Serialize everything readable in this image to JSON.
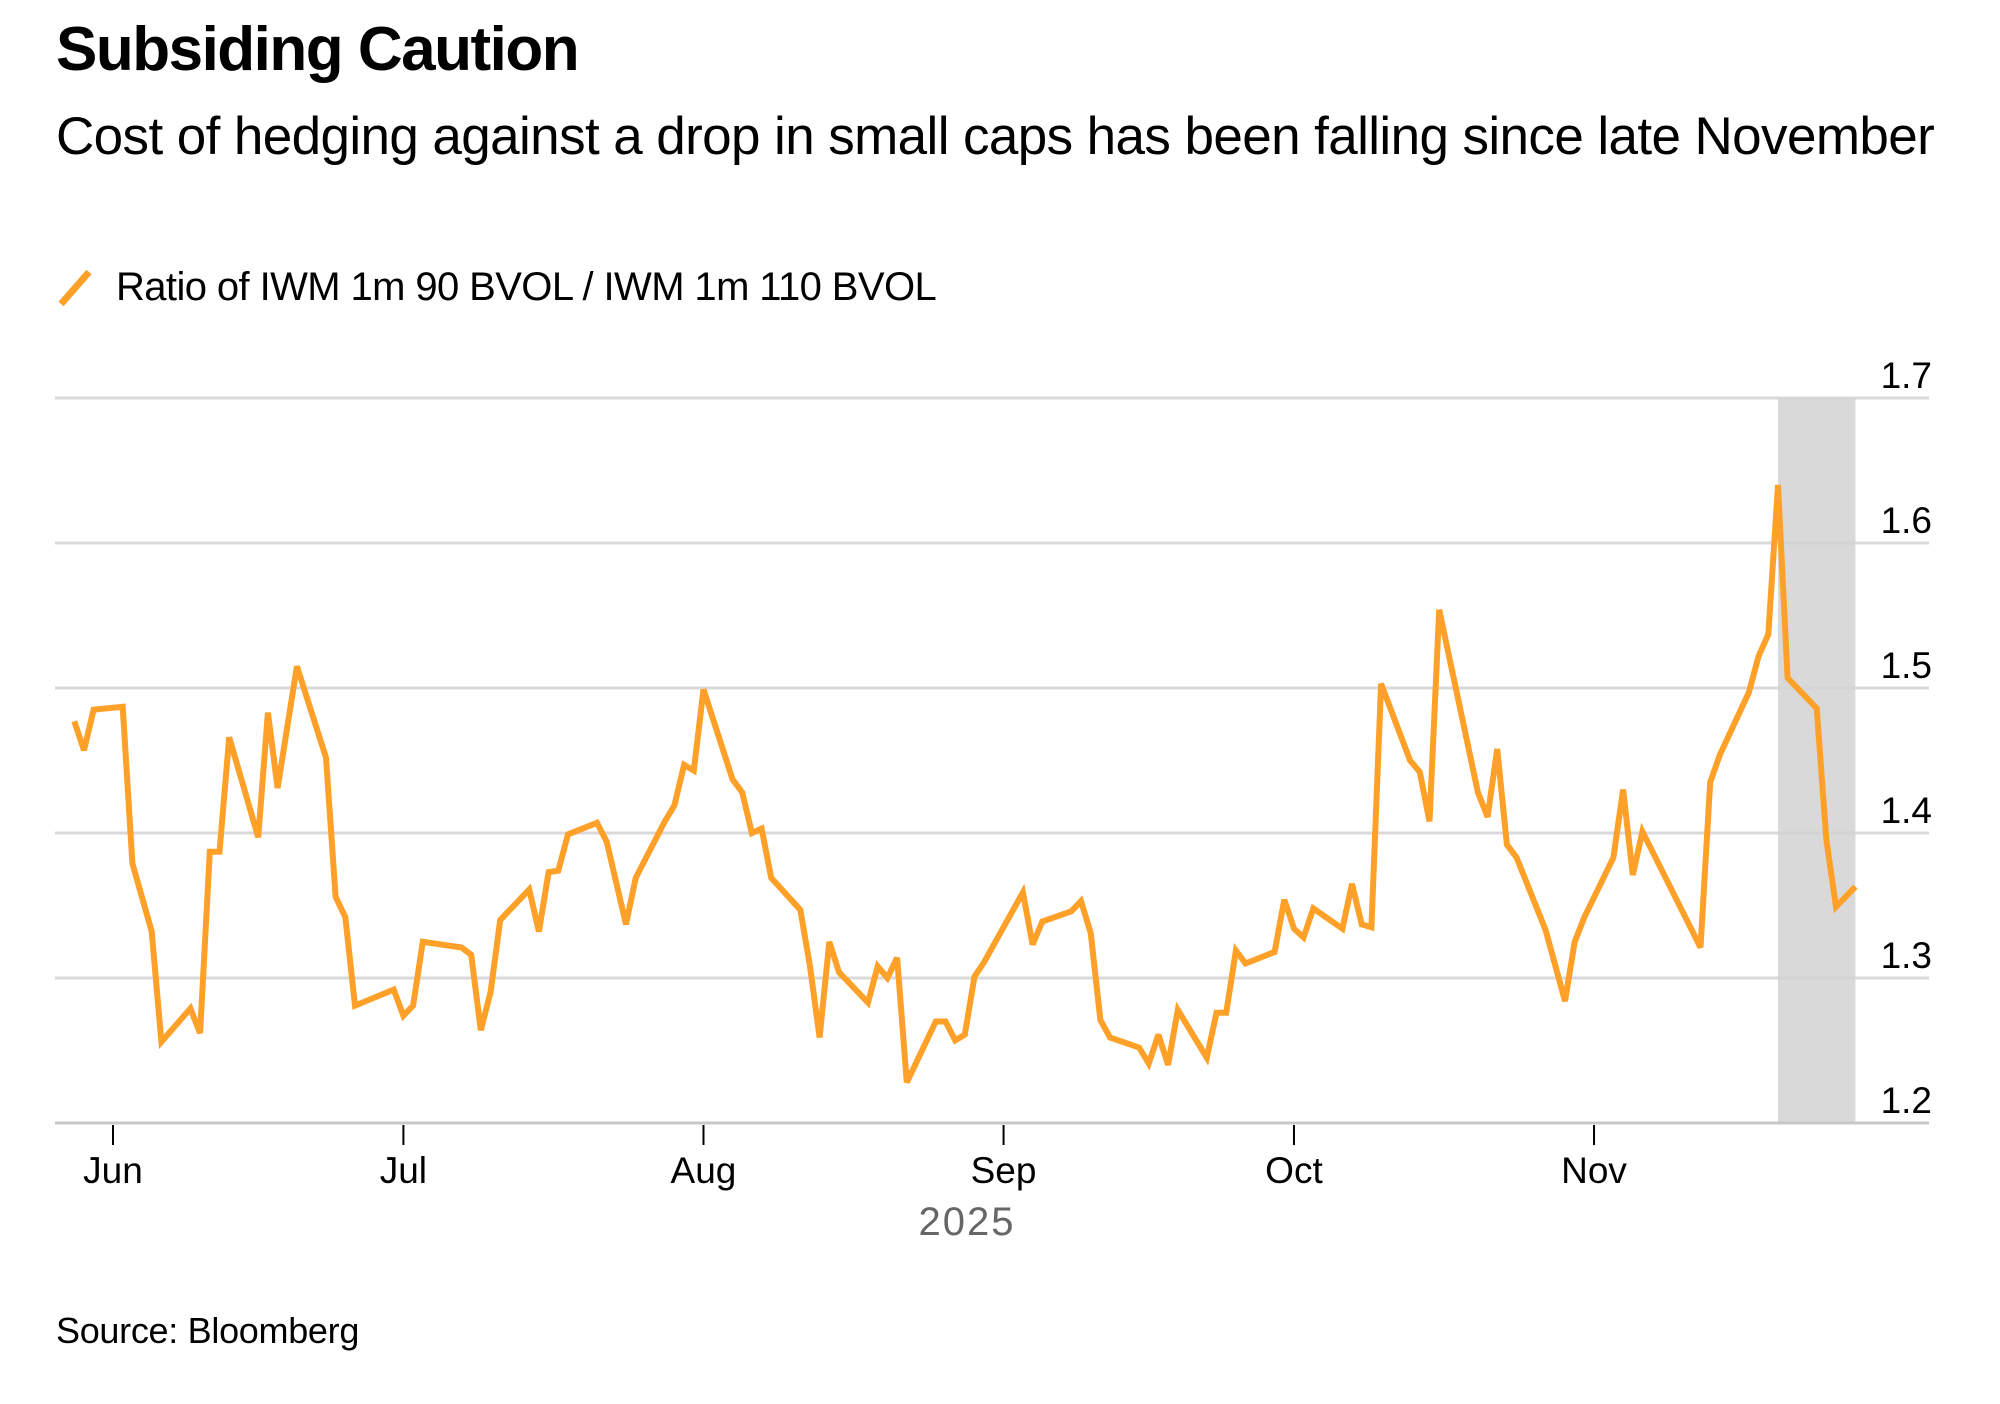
{
  "header": {
    "title": "Subsiding Caution",
    "subtitle": "Cost of hedging against a drop in small caps has been falling since late November"
  },
  "legend": {
    "icon": "line-swatch-icon",
    "label": "Ratio of IWM 1m 90 BVOL / IWM 1m 110 BVOL",
    "color": "#FFA028"
  },
  "footer": {
    "source": "Source: Bloomberg"
  },
  "colors": {
    "series": "#FFA028",
    "grid": "#D2D2D2",
    "highlight_band": "#D9D9D9",
    "axis_text": "#000000",
    "year_text": "#666666"
  },
  "chart_data": {
    "type": "line",
    "title": "Subsiding Caution",
    "subtitle": "Cost of hedging against a drop in small caps has been falling since late November",
    "xlabel": "2025",
    "ylabel": "",
    "ylim": [
      1.2,
      1.7
    ],
    "yticks": [
      1.2,
      1.3,
      1.4,
      1.5,
      1.6,
      1.7
    ],
    "ytick_labels": [
      "1.2",
      "1.3",
      "1.4",
      "1.5",
      "1.6",
      "1.7"
    ],
    "y_axis_side": "right",
    "xlim": [
      "2025-05-25",
      "2025-12-04"
    ],
    "xticks": [
      "2025-06-01",
      "2025-07-01",
      "2025-08-01",
      "2025-09-01",
      "2025-10-01",
      "2025-11-01"
    ],
    "xtick_labels": [
      "Jun",
      "Jul",
      "Aug",
      "Sep",
      "Oct",
      "Nov"
    ],
    "year_label": "2025",
    "grid": "horizontal",
    "legend_position": "top-left",
    "highlight_band": {
      "start": "2025-11-20",
      "end": "2025-11-28"
    },
    "source": "Source: Bloomberg",
    "series": [
      {
        "name": "Ratio of IWM 1m 90 BVOL / IWM 1m 110 BVOL",
        "color": "#FFA028",
        "x": [
          "2025-05-28",
          "2025-05-29",
          "2025-05-30",
          "2025-06-02",
          "2025-06-03",
          "2025-06-05",
          "2025-06-06",
          "2025-06-09",
          "2025-06-10",
          "2025-06-11",
          "2025-06-12",
          "2025-06-13",
          "2025-06-16",
          "2025-06-17",
          "2025-06-18",
          "2025-06-20",
          "2025-06-23",
          "2025-06-24",
          "2025-06-25",
          "2025-06-26",
          "2025-06-30",
          "2025-07-01",
          "2025-07-02",
          "2025-07-03",
          "2025-07-07",
          "2025-07-08",
          "2025-07-09",
          "2025-07-10",
          "2025-07-11",
          "2025-07-14",
          "2025-07-15",
          "2025-07-16",
          "2025-07-17",
          "2025-07-18",
          "2025-07-21",
          "2025-07-22",
          "2025-07-24",
          "2025-07-25",
          "2025-07-28",
          "2025-07-29",
          "2025-07-30",
          "2025-07-31",
          "2025-08-01",
          "2025-08-04",
          "2025-08-05",
          "2025-08-06",
          "2025-08-07",
          "2025-08-08",
          "2025-08-11",
          "2025-08-12",
          "2025-08-13",
          "2025-08-14",
          "2025-08-15",
          "2025-08-18",
          "2025-08-19",
          "2025-08-20",
          "2025-08-21",
          "2025-08-22",
          "2025-08-25",
          "2025-08-26",
          "2025-08-27",
          "2025-08-28",
          "2025-08-29",
          "2025-08-30",
          "2025-09-03",
          "2025-09-04",
          "2025-09-05",
          "2025-09-08",
          "2025-09-09",
          "2025-09-10",
          "2025-09-11",
          "2025-09-12",
          "2025-09-15",
          "2025-09-16",
          "2025-09-17",
          "2025-09-18",
          "2025-09-19",
          "2025-09-22",
          "2025-09-23",
          "2025-09-24",
          "2025-09-25",
          "2025-09-26",
          "2025-09-29",
          "2025-09-30",
          "2025-10-01",
          "2025-10-02",
          "2025-10-03",
          "2025-10-06",
          "2025-10-07",
          "2025-10-08",
          "2025-10-09",
          "2025-10-10",
          "2025-10-13",
          "2025-10-14",
          "2025-10-15",
          "2025-10-16",
          "2025-10-20",
          "2025-10-21",
          "2025-10-22",
          "2025-10-23",
          "2025-10-24",
          "2025-10-27",
          "2025-10-29",
          "2025-10-30",
          "2025-10-31",
          "2025-11-03",
          "2025-11-04",
          "2025-11-05",
          "2025-11-06",
          "2025-11-12",
          "2025-11-13",
          "2025-11-14",
          "2025-11-17",
          "2025-11-18",
          "2025-11-19",
          "2025-11-20",
          "2025-11-21",
          "2025-11-24",
          "2025-11-25",
          "2025-11-26",
          "2025-11-28"
        ],
        "y": [
          1.477,
          1.457,
          1.485,
          1.487,
          1.379,
          1.332,
          1.256,
          1.279,
          1.262,
          1.387,
          1.387,
          1.466,
          1.397,
          1.483,
          1.431,
          1.515,
          1.452,
          1.356,
          1.342,
          1.281,
          1.292,
          1.274,
          1.281,
          1.325,
          1.321,
          1.316,
          1.264,
          1.29,
          1.34,
          1.361,
          1.332,
          1.373,
          1.374,
          1.399,
          1.407,
          1.394,
          1.337,
          1.369,
          1.408,
          1.419,
          1.447,
          1.443,
          1.499,
          1.437,
          1.428,
          1.4,
          1.403,
          1.369,
          1.347,
          1.308,
          1.259,
          1.325,
          1.304,
          1.283,
          1.308,
          1.3,
          1.314,
          1.228,
          1.27,
          1.27,
          1.257,
          1.261,
          1.301,
          1.311,
          1.359,
          1.323,
          1.339,
          1.346,
          1.353,
          1.331,
          1.271,
          1.259,
          1.252,
          1.241,
          1.261,
          1.24,
          1.278,
          1.245,
          1.276,
          1.276,
          1.319,
          1.31,
          1.318,
          1.354,
          1.334,
          1.328,
          1.348,
          1.334,
          1.365,
          1.337,
          1.335,
          1.503,
          1.45,
          1.442,
          1.408,
          1.554,
          1.428,
          1.411,
          1.458,
          1.392,
          1.383,
          1.333,
          1.284,
          1.325,
          1.342,
          1.383,
          1.43,
          1.371,
          1.401,
          1.321,
          1.435,
          1.454,
          1.497,
          1.522,
          1.537,
          1.64,
          1.507,
          1.486,
          1.395,
          1.349,
          1.363
        ]
      }
    ]
  }
}
